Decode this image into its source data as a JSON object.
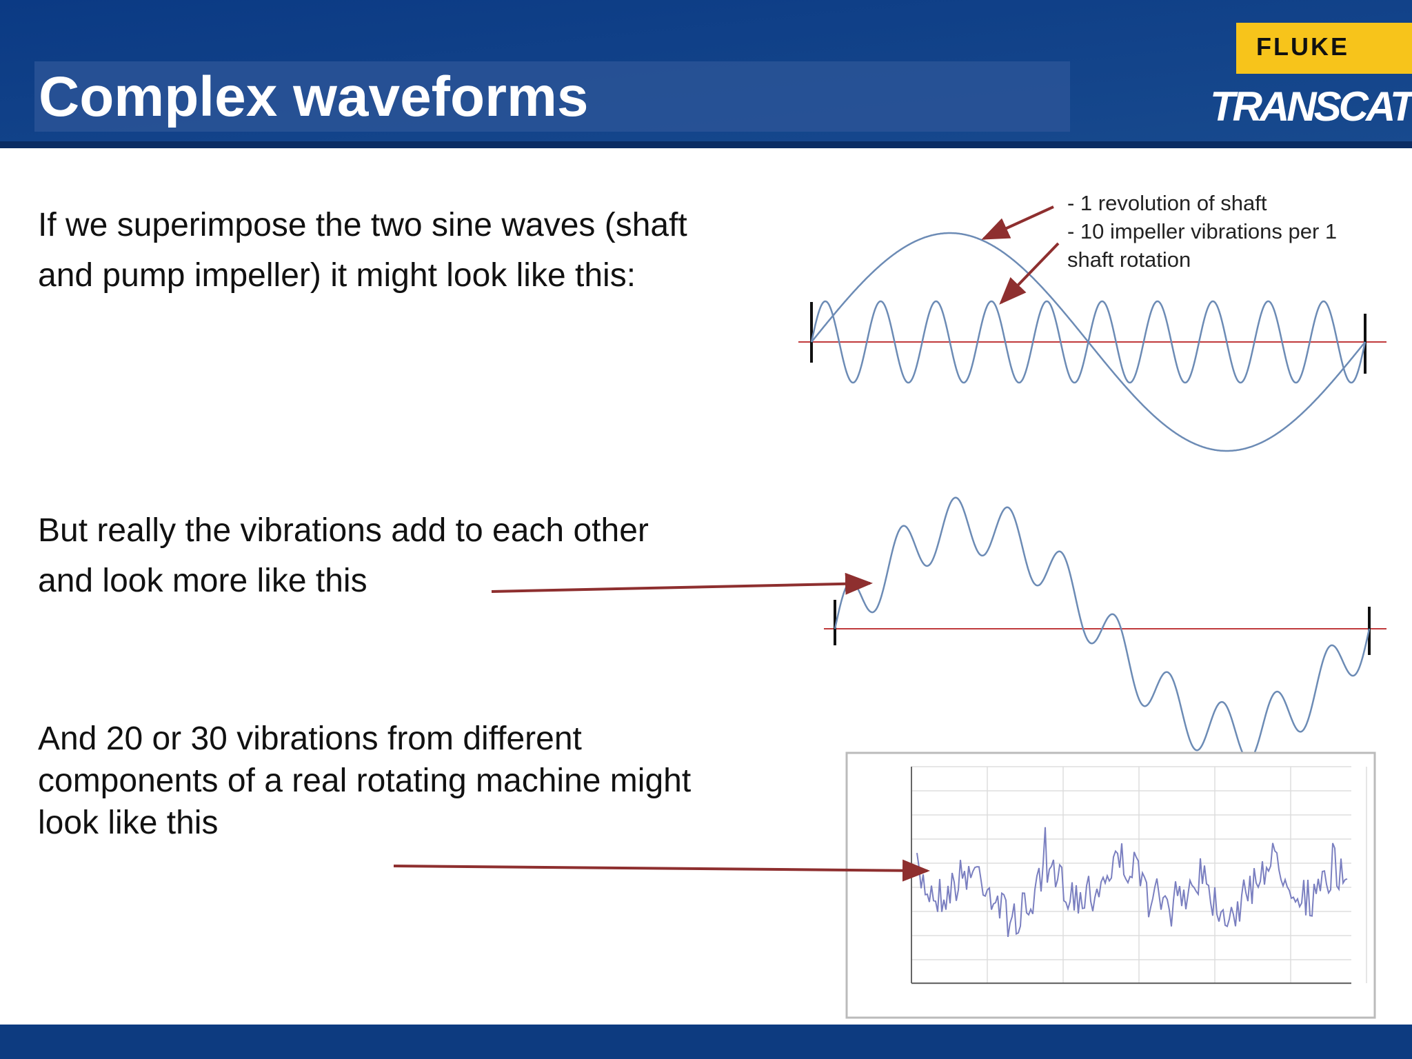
{
  "header": {
    "title": "Complex waveforms",
    "logo": {
      "fluke": "FLUKE",
      "transcat": "TRANSCAT"
    }
  },
  "annotation": {
    "lines": [
      "- 1 revolution of shaft",
      "- 10 impeller vibrations per 1",
      "shaft rotation"
    ]
  },
  "paragraphs": [
    {
      "lines": [
        "If we superimpose the two sine waves (shaft",
        "and pump impeller) it might look like this:"
      ]
    },
    {
      "lines": [
        "But really the vibrations add to each other",
        "and look more like this"
      ]
    },
    {
      "lines": [
        "And 20 or 30 vibrations from different",
        "components of a real rotating machine might",
        "look like this"
      ]
    }
  ]
}
